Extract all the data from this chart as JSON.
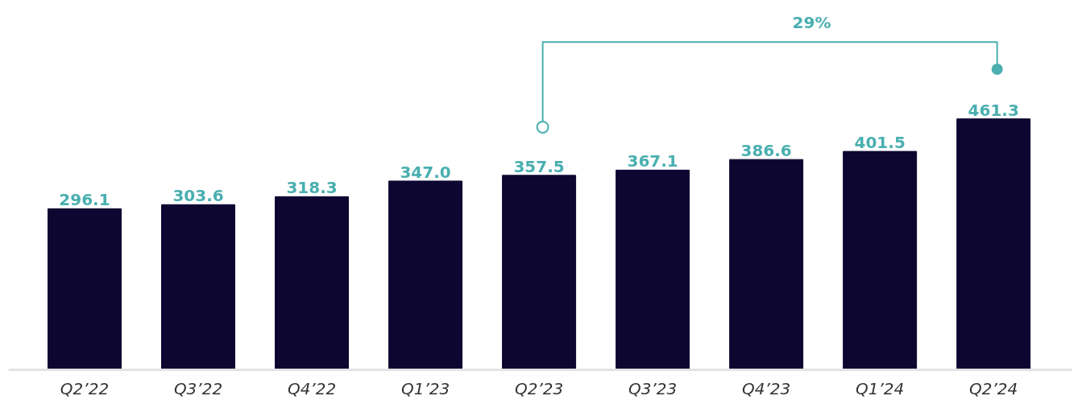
{
  "chart_data": {
    "type": "bar",
    "categories": [
      "Q2’22",
      "Q3’22",
      "Q4’22",
      "Q1’23",
      "Q2’23",
      "Q3’23",
      "Q4’23",
      "Q1’24",
      "Q2’24"
    ],
    "values": [
      296.1,
      303.6,
      318.3,
      347.0,
      357.5,
      367.1,
      386.6,
      401.5,
      461.3
    ],
    "value_labels": [
      "296.1",
      "303.6",
      "318.3",
      "347.0",
      "357.5",
      "367.1",
      "386.6",
      "401.5",
      "461.3"
    ],
    "color": "#0d0630",
    "tick_labels": "x",
    "grid": false,
    "annotations": [
      "29%"
    ]
  }
}
